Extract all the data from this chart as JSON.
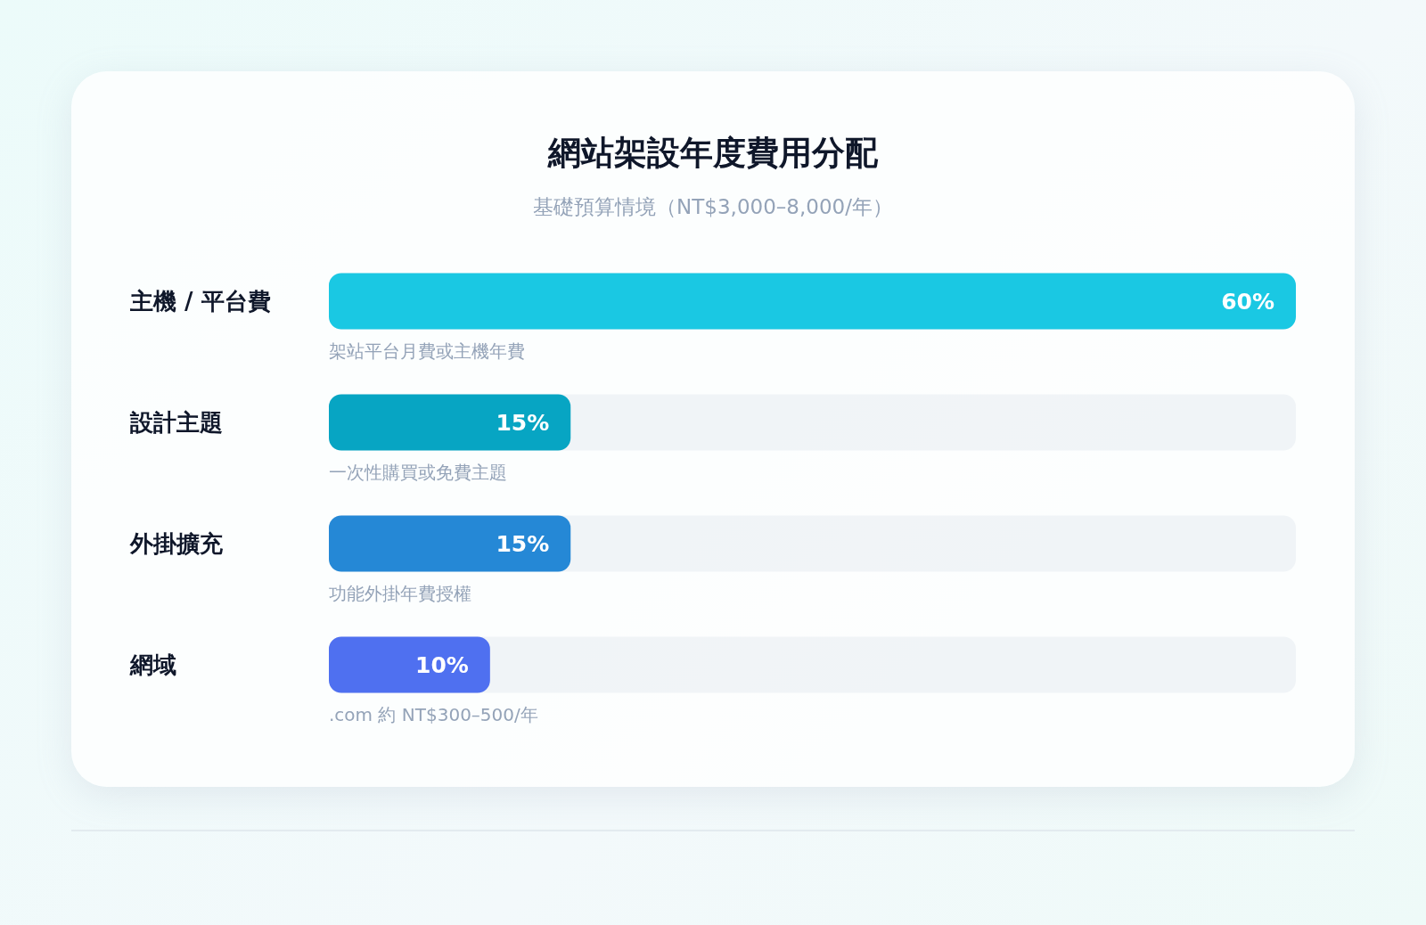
{
  "chart_data": {
    "type": "bar",
    "orientation": "horizontal",
    "title": "網站架設年度費用分配",
    "subtitle": "基礎預算情境（NT$3,000–8,000/年）",
    "categories": [
      "主機 / 平台費",
      "設計主題",
      "外掛擴充",
      "網域"
    ],
    "values": [
      60,
      15,
      15,
      10
    ],
    "value_labels": [
      "60%",
      "15%",
      "15%",
      "10%"
    ],
    "colors": [
      "#1ac8e3",
      "#07a5c3",
      "#2588d6",
      "#4f70f0"
    ],
    "xlim": [
      0,
      60
    ],
    "tick_labels": "y",
    "annotations": [
      "架站平台月費或主機年費",
      "一次性購買或免費主題",
      "功能外掛年費授權",
      ".com 約 NT$300–500/年"
    ]
  }
}
